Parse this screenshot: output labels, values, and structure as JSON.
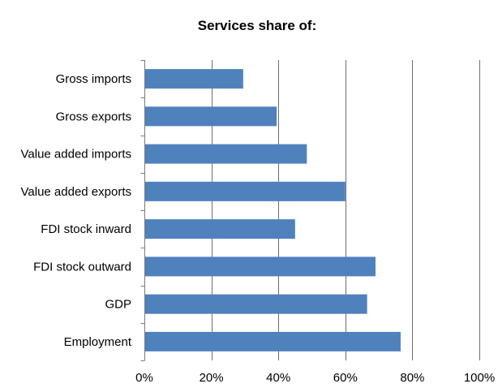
{
  "chart_data": {
    "type": "bar",
    "orientation": "horizontal",
    "title": "Services share of:",
    "categories": [
      "Gross imports",
      "Gross exports",
      "Value added imports",
      "Value added exports",
      "FDI stock inward",
      "FDI stock outward",
      "GDP",
      "Employment"
    ],
    "values": [
      29.5,
      39.5,
      48.5,
      60,
      45,
      69,
      66.5,
      76.5
    ],
    "xlim": [
      0,
      100
    ],
    "xticks": [
      0,
      20,
      40,
      60,
      80,
      100
    ],
    "xtick_labels": [
      "0%",
      "20%",
      "40%",
      "60%",
      "80%",
      "100%"
    ],
    "grid": true,
    "legend": false,
    "bar_color": "#4f81bd"
  }
}
